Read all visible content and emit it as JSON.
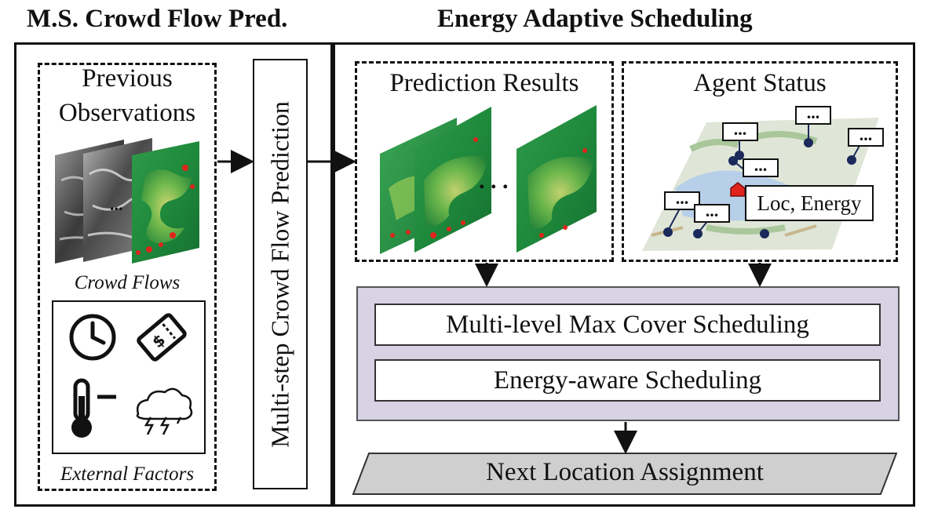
{
  "titles": {
    "left": "M.S. Crowd Flow Pred.",
    "right": "Energy Adaptive Scheduling"
  },
  "left_panel": {
    "observations_line1": "Previous",
    "observations_line2": "Observations",
    "ellipsis": "...",
    "crowd_flows_label": "Crowd Flows",
    "external_factors_label": "External Factors",
    "factor_icons": [
      "clock-icon",
      "ticket-icon",
      "thermometer-icon",
      "weather-icon"
    ]
  },
  "middle": {
    "prediction_module": "Multi-step Crowd Flow Prediction"
  },
  "right_panel": {
    "prediction_results": "Prediction Results",
    "prediction_ellipsis": ". . .",
    "agent_status": "Agent Status",
    "callout_text": "...",
    "loc_energy": "Loc, Energy",
    "scheduling": {
      "level1": "Multi-level Max Cover Scheduling",
      "level2": "Energy-aware Scheduling"
    },
    "output": "Next Location Assignment"
  },
  "colors": {
    "heatmap_base": "#1f8a3c",
    "scheduling_bg": "#d8d2e4",
    "output_bg": "#cfcfcf",
    "agent_dot": "#1b2a5a",
    "hotspot": "#e0241c"
  }
}
